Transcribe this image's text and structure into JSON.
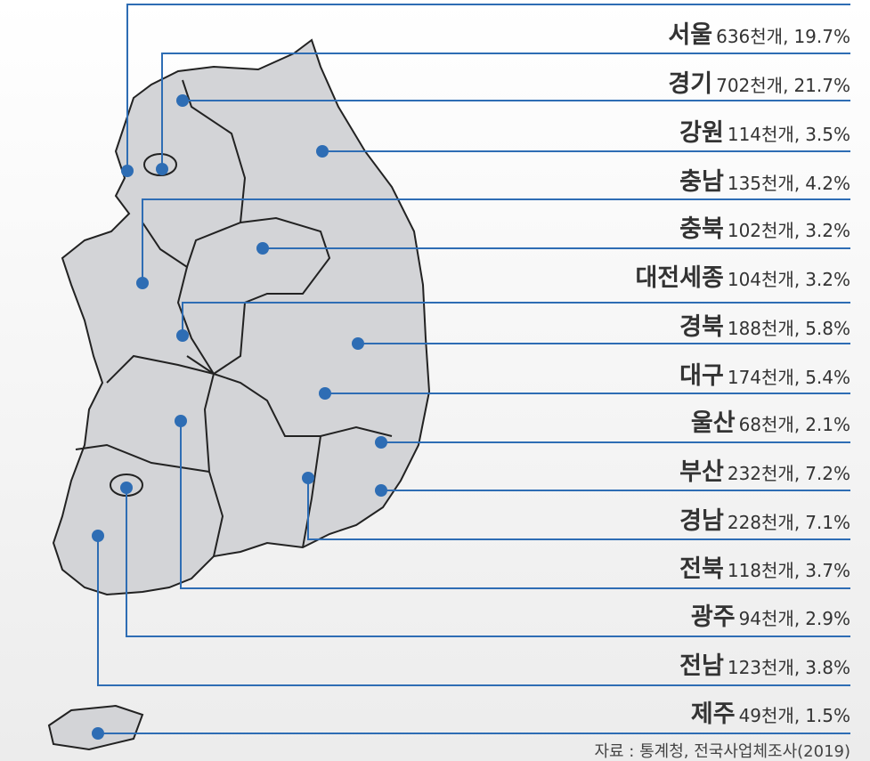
{
  "regions": [
    {
      "name": "서울",
      "count": "636천개,",
      "share": "19.7%"
    },
    {
      "name": "경기",
      "count": "702천개,",
      "share": "21.7%"
    },
    {
      "name": "강원",
      "count": "114천개,",
      "share": "3.5%"
    },
    {
      "name": "충남",
      "count": "135천개,",
      "share": "4.2%"
    },
    {
      "name": "충북",
      "count": "102천개,",
      "share": "3.2%"
    },
    {
      "name": "대전세종",
      "count": "104천개,",
      "share": "3.2%"
    },
    {
      "name": "경북",
      "count": "188천개,",
      "share": "5.8%"
    },
    {
      "name": "대구",
      "count": "174천개,",
      "share": "5.4%"
    },
    {
      "name": "울산",
      "count": "68천개,",
      "share": "2.1%"
    },
    {
      "name": "부산",
      "count": "232천개,",
      "share": "7.2%"
    },
    {
      "name": "경남",
      "count": "228천개,",
      "share": "7.1%"
    },
    {
      "name": "전북",
      "count": "118천개,",
      "share": "3.7%"
    },
    {
      "name": "광주",
      "count": "94천개,",
      "share": "2.9%"
    },
    {
      "name": "전남",
      "count": "123천개,",
      "share": "3.8%"
    },
    {
      "name": "제주",
      "count": "49천개,",
      "share": "1.5%"
    }
  ],
  "source": "자료 : 통계청, 전국사업체조사(2019)"
}
